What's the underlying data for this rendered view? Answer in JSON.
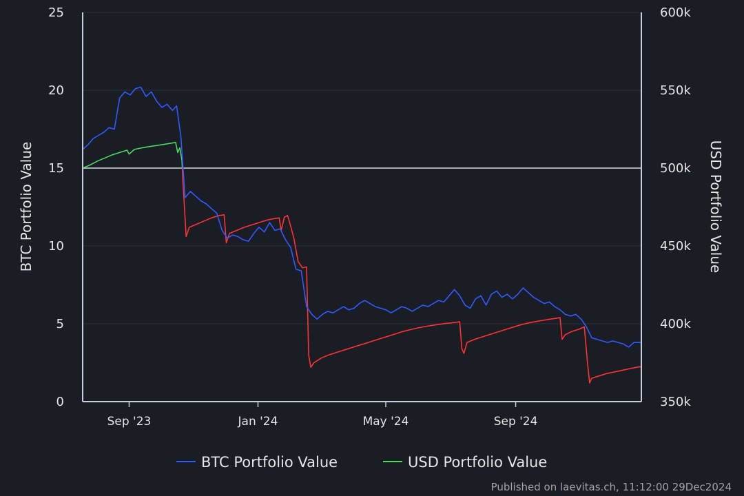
{
  "chart_data": {
    "type": "line",
    "title": "",
    "y_left": {
      "label": "BTC Portfolio Value",
      "ticks": [
        "0",
        "5",
        "10",
        "15",
        "20",
        "25"
      ],
      "range": [
        0,
        25
      ]
    },
    "y_right": {
      "label": "USD Portfolio Value",
      "ticks": [
        "350k",
        "400k",
        "450k",
        "500k",
        "550k",
        "600k"
      ],
      "range": [
        350000,
        600000
      ],
      "reference_line": 500000
    },
    "x_axis": {
      "ticks": [
        "Sep '23",
        "Jan '24",
        "May '24",
        "Sep '24"
      ],
      "tick_dates": [
        "2023-09-01",
        "2024-01-01",
        "2024-05-01",
        "2024-09-01"
      ],
      "range": [
        "2023-07-19",
        "2024-12-29"
      ]
    },
    "legend": {
      "placement": "bottom",
      "items": [
        {
          "name": "BTC Portfolio Value",
          "color": "#2e5bff"
        },
        {
          "name": "USD Portfolio Value",
          "color": "#4cd964"
        }
      ]
    },
    "loss_color": "#ff3333",
    "series": [
      {
        "name": "BTC Portfolio Value",
        "axis": "left",
        "color": "#2e5bff",
        "points": [
          [
            "2023-07-19",
            16.2
          ],
          [
            "2023-07-24",
            16.5
          ],
          [
            "2023-07-29",
            16.9
          ],
          [
            "2023-08-03",
            17.1
          ],
          [
            "2023-08-08",
            17.3
          ],
          [
            "2023-08-13",
            17.6
          ],
          [
            "2023-08-18",
            17.5
          ],
          [
            "2023-08-23",
            19.5
          ],
          [
            "2023-08-28",
            19.9
          ],
          [
            "2023-09-02",
            19.7
          ],
          [
            "2023-09-07",
            20.1
          ],
          [
            "2023-09-12",
            20.2
          ],
          [
            "2023-09-17",
            19.6
          ],
          [
            "2023-09-22",
            19.9
          ],
          [
            "2023-09-27",
            19.3
          ],
          [
            "2023-10-02",
            18.9
          ],
          [
            "2023-10-07",
            19.1
          ],
          [
            "2023-10-12",
            18.7
          ],
          [
            "2023-10-16",
            19.0
          ],
          [
            "2023-10-20",
            17.0
          ],
          [
            "2023-10-24",
            13.1
          ],
          [
            "2023-10-29",
            13.5
          ],
          [
            "2023-11-03",
            13.2
          ],
          [
            "2023-11-08",
            12.9
          ],
          [
            "2023-11-13",
            12.7
          ],
          [
            "2023-11-18",
            12.4
          ],
          [
            "2023-11-23",
            12.1
          ],
          [
            "2023-11-28",
            11.0
          ],
          [
            "2023-12-03",
            10.5
          ],
          [
            "2023-12-08",
            10.7
          ],
          [
            "2023-12-13",
            10.6
          ],
          [
            "2023-12-18",
            10.4
          ],
          [
            "2023-12-23",
            10.3
          ],
          [
            "2023-12-28",
            10.8
          ],
          [
            "2024-01-02",
            11.2
          ],
          [
            "2024-01-07",
            10.9
          ],
          [
            "2024-01-12",
            11.5
          ],
          [
            "2024-01-17",
            11.0
          ],
          [
            "2024-01-22",
            11.1
          ],
          [
            "2024-01-27",
            10.4
          ],
          [
            "2024-02-01",
            9.9
          ],
          [
            "2024-02-06",
            8.5
          ],
          [
            "2024-02-11",
            8.4
          ],
          [
            "2024-02-16",
            6.1
          ],
          [
            "2024-02-21",
            5.6
          ],
          [
            "2024-02-26",
            5.3
          ],
          [
            "2024-03-02",
            5.6
          ],
          [
            "2024-03-07",
            5.8
          ],
          [
            "2024-03-12",
            5.7
          ],
          [
            "2024-03-17",
            5.9
          ],
          [
            "2024-03-22",
            6.1
          ],
          [
            "2024-03-27",
            5.9
          ],
          [
            "2024-04-01",
            6.0
          ],
          [
            "2024-04-06",
            6.3
          ],
          [
            "2024-04-11",
            6.5
          ],
          [
            "2024-04-16",
            6.3
          ],
          [
            "2024-04-21",
            6.1
          ],
          [
            "2024-04-26",
            6.0
          ],
          [
            "2024-05-01",
            5.9
          ],
          [
            "2024-05-06",
            5.7
          ],
          [
            "2024-05-11",
            5.9
          ],
          [
            "2024-05-16",
            6.1
          ],
          [
            "2024-05-21",
            6.0
          ],
          [
            "2024-05-26",
            5.8
          ],
          [
            "2024-05-31",
            6.0
          ],
          [
            "2024-06-05",
            6.2
          ],
          [
            "2024-06-10",
            6.1
          ],
          [
            "2024-06-15",
            6.3
          ],
          [
            "2024-06-20",
            6.5
          ],
          [
            "2024-06-25",
            6.4
          ],
          [
            "2024-06-30",
            6.8
          ],
          [
            "2024-07-05",
            7.2
          ],
          [
            "2024-07-10",
            6.8
          ],
          [
            "2024-07-15",
            6.2
          ],
          [
            "2024-07-20",
            6.0
          ],
          [
            "2024-07-25",
            6.6
          ],
          [
            "2024-07-30",
            6.8
          ],
          [
            "2024-08-04",
            6.2
          ],
          [
            "2024-08-09",
            6.9
          ],
          [
            "2024-08-14",
            7.1
          ],
          [
            "2024-08-19",
            6.7
          ],
          [
            "2024-08-24",
            6.9
          ],
          [
            "2024-08-29",
            6.6
          ],
          [
            "2024-09-03",
            6.9
          ],
          [
            "2024-09-08",
            7.3
          ],
          [
            "2024-09-13",
            7.0
          ],
          [
            "2024-09-18",
            6.7
          ],
          [
            "2024-09-23",
            6.5
          ],
          [
            "2024-09-28",
            6.3
          ],
          [
            "2024-10-03",
            6.4
          ],
          [
            "2024-10-08",
            6.1
          ],
          [
            "2024-10-13",
            5.9
          ],
          [
            "2024-10-18",
            5.6
          ],
          [
            "2024-10-23",
            5.5
          ],
          [
            "2024-10-28",
            5.6
          ],
          [
            "2024-11-02",
            5.3
          ],
          [
            "2024-11-07",
            4.8
          ],
          [
            "2024-11-12",
            4.1
          ],
          [
            "2024-11-17",
            4.0
          ],
          [
            "2024-11-22",
            3.9
          ],
          [
            "2024-11-27",
            3.8
          ],
          [
            "2024-12-02",
            3.9
          ],
          [
            "2024-12-07",
            3.8
          ],
          [
            "2024-12-12",
            3.7
          ],
          [
            "2024-12-17",
            3.5
          ],
          [
            "2024-12-22",
            3.8
          ],
          [
            "2024-12-29",
            3.8
          ]
        ]
      },
      {
        "name": "USD Portfolio Value",
        "axis": "right",
        "color_above_reference": "#4cd964",
        "color_below_reference": "#ff3333",
        "points": [
          [
            "2023-07-19",
            500000
          ],
          [
            "2023-07-26",
            502000
          ],
          [
            "2023-08-02",
            504500
          ],
          [
            "2023-08-09",
            506500
          ],
          [
            "2023-08-16",
            508500
          ],
          [
            "2023-08-23",
            510000
          ],
          [
            "2023-08-30",
            511500
          ],
          [
            "2023-09-01",
            509000
          ],
          [
            "2023-09-06",
            512000
          ],
          [
            "2023-09-13",
            513000
          ],
          [
            "2023-09-20",
            513800
          ],
          [
            "2023-09-27",
            514500
          ],
          [
            "2023-10-04",
            515200
          ],
          [
            "2023-10-11",
            516000
          ],
          [
            "2023-10-15",
            516500
          ],
          [
            "2023-10-17",
            510000
          ],
          [
            "2023-10-19",
            513000
          ],
          [
            "2023-10-21",
            505000
          ],
          [
            "2023-10-22",
            490000
          ],
          [
            "2023-10-23",
            479000
          ],
          [
            "2023-10-25",
            456000
          ],
          [
            "2023-10-28",
            462000
          ],
          [
            "2023-11-04",
            464000
          ],
          [
            "2023-11-11",
            466000
          ],
          [
            "2023-11-18",
            468000
          ],
          [
            "2023-11-25",
            469500
          ],
          [
            "2023-11-30",
            470000
          ],
          [
            "2023-12-02",
            452000
          ],
          [
            "2023-12-05",
            458000
          ],
          [
            "2023-12-12",
            460000
          ],
          [
            "2023-12-19",
            462000
          ],
          [
            "2023-12-26",
            463500
          ],
          [
            "2024-01-02",
            465000
          ],
          [
            "2024-01-09",
            466500
          ],
          [
            "2024-01-16",
            467500
          ],
          [
            "2024-01-21",
            468000
          ],
          [
            "2024-01-23",
            460000
          ],
          [
            "2024-01-26",
            468500
          ],
          [
            "2024-01-29",
            469500
          ],
          [
            "2024-01-31",
            465000
          ],
          [
            "2024-02-04",
            455000
          ],
          [
            "2024-02-08",
            440000
          ],
          [
            "2024-02-12",
            436000
          ],
          [
            "2024-02-16",
            436500
          ],
          [
            "2024-02-18",
            380000
          ],
          [
            "2024-02-20",
            372000
          ],
          [
            "2024-02-23",
            375000
          ],
          [
            "2024-03-01",
            378000
          ],
          [
            "2024-03-08",
            380000
          ],
          [
            "2024-03-15",
            381500
          ],
          [
            "2024-03-22",
            383000
          ],
          [
            "2024-03-29",
            384500
          ],
          [
            "2024-04-05",
            386000
          ],
          [
            "2024-04-12",
            387500
          ],
          [
            "2024-04-19",
            389000
          ],
          [
            "2024-04-26",
            390500
          ],
          [
            "2024-05-03",
            392000
          ],
          [
            "2024-05-10",
            393500
          ],
          [
            "2024-05-17",
            395000
          ],
          [
            "2024-05-24",
            396200
          ],
          [
            "2024-05-31",
            397300
          ],
          [
            "2024-06-07",
            398200
          ],
          [
            "2024-06-14",
            399000
          ],
          [
            "2024-06-21",
            399700
          ],
          [
            "2024-06-28",
            400300
          ],
          [
            "2024-07-05",
            400800
          ],
          [
            "2024-07-10",
            401300
          ],
          [
            "2024-07-12",
            384000
          ],
          [
            "2024-07-14",
            381000
          ],
          [
            "2024-07-17",
            388000
          ],
          [
            "2024-07-24",
            390000
          ],
          [
            "2024-07-31",
            391500
          ],
          [
            "2024-08-07",
            393000
          ],
          [
            "2024-08-14",
            394500
          ],
          [
            "2024-08-21",
            396000
          ],
          [
            "2024-08-28",
            397500
          ],
          [
            "2024-09-04",
            399000
          ],
          [
            "2024-09-11",
            400200
          ],
          [
            "2024-09-18",
            401200
          ],
          [
            "2024-09-25",
            402000
          ],
          [
            "2024-10-02",
            402800
          ],
          [
            "2024-10-09",
            403500
          ],
          [
            "2024-10-13",
            404000
          ],
          [
            "2024-10-15",
            390000
          ],
          [
            "2024-10-18",
            393000
          ],
          [
            "2024-10-24",
            395000
          ],
          [
            "2024-10-31",
            396500
          ],
          [
            "2024-11-05",
            398000
          ],
          [
            "2024-11-08",
            375000
          ],
          [
            "2024-11-10",
            362000
          ],
          [
            "2024-11-12",
            365000
          ],
          [
            "2024-11-19",
            366500
          ],
          [
            "2024-11-26",
            368000
          ],
          [
            "2024-12-03",
            369000
          ],
          [
            "2024-12-10",
            370000
          ],
          [
            "2024-12-17",
            371000
          ],
          [
            "2024-12-24",
            372000
          ],
          [
            "2024-12-29",
            372500
          ]
        ]
      }
    ]
  },
  "footer": {
    "text": "Published on laevitas.ch, 11:12:00 29Dec2024"
  }
}
